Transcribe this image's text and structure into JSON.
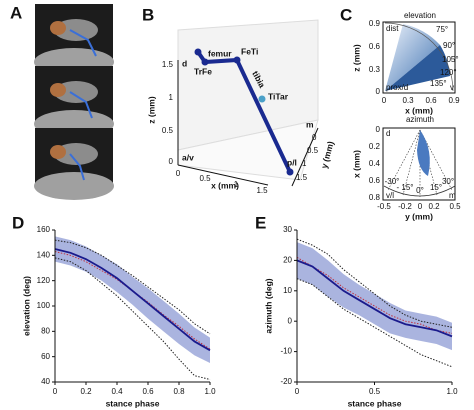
{
  "panels": {
    "a": {
      "letter": "A"
    },
    "b": {
      "letter": "B",
      "joints": [
        "TrFe",
        "femur",
        "FeTi",
        "tibia",
        "TiTar"
      ],
      "directions": [
        "d",
        "a/v",
        "p/l",
        "m"
      ],
      "z_label": "z (mm)",
      "x_label": "x (mm)",
      "y_label": "y (mm)",
      "z_ticks": [
        "1.5",
        "1",
        "0.5",
        "0"
      ],
      "x_ticks": [
        "0",
        "0.5",
        "1",
        "1.5"
      ],
      "y_ticks": [
        "0",
        "0.5",
        "1",
        "1.5"
      ]
    },
    "c": {
      "letter": "C",
      "elevation": {
        "title": "elevation",
        "corners": [
          "dist",
          "prox/d",
          "v"
        ],
        "angles": [
          "75°",
          "90°",
          "105°",
          "120°",
          "135°"
        ],
        "z_label": "z (mm)",
        "x_label": "x (mm)",
        "z_ticks": [
          "0.9",
          "0.6",
          "0.3",
          "0"
        ],
        "x_ticks": [
          "0",
          "0.3",
          "0.6",
          "0.9"
        ]
      },
      "azimuth": {
        "title": "azimuth",
        "corners": [
          "d",
          "v/l",
          "m"
        ],
        "angles": [
          "-30°",
          "- 15°",
          "0°",
          "15°",
          "30°"
        ],
        "x_label": "x (mm)",
        "y_label": "y (mm)",
        "x_ticks": [
          "0",
          "0.2",
          "0.4",
          "0.6",
          "0.8"
        ],
        "y_ticks": [
          "-0.5",
          "-0.2",
          "0",
          "0.2",
          "0.5"
        ]
      }
    }
  },
  "chart_data": [
    {
      "type": "line",
      "letter": "D",
      "xlabel": "stance phase",
      "ylabel": "elevation (deg)",
      "x": [
        0,
        0.1,
        0.2,
        0.3,
        0.4,
        0.5,
        0.6,
        0.7,
        0.8,
        0.9,
        1
      ],
      "xlim": [
        0,
        1
      ],
      "xticks": [
        0,
        0.2,
        0.4,
        0.6,
        0.8,
        {
          "value": 1,
          "label": "1.0"
        }
      ],
      "ylim": [
        40,
        160
      ],
      "yticks": [
        40,
        60,
        80,
        100,
        120,
        140,
        160
      ],
      "series": [
        {
          "color": "#1a1a8c",
          "band_color": "#8e9bd4",
          "values": [
            145,
            142,
            137,
            130,
            122,
            112,
            102,
            92,
            82,
            72,
            65
          ],
          "errors": [
            10,
            10,
            10,
            10,
            11,
            11,
            12,
            12,
            12,
            11,
            10
          ]
        },
        {
          "color": "#c03040",
          "style": "dotted",
          "values": [
            143,
            140,
            135,
            128,
            121,
            112,
            103,
            93,
            84,
            74,
            66
          ]
        },
        {
          "color": "#222222",
          "style": "dotted",
          "values": [
            152,
            150,
            146,
            140,
            132,
            124,
            115,
            106,
            97,
            86,
            78
          ]
        },
        {
          "color": "#222222",
          "style": "dotted",
          "values": [
            138,
            135,
            128,
            118,
            108,
            96,
            84,
            72,
            58,
            45,
            42
          ]
        }
      ]
    },
    {
      "type": "line",
      "letter": "E",
      "xlabel": "stance phase",
      "ylabel": "azimuth (deg)",
      "x": [
        0,
        0.1,
        0.2,
        0.3,
        0.4,
        0.5,
        0.6,
        0.7,
        0.8,
        0.9,
        1
      ],
      "xlim": [
        0,
        1
      ],
      "xticks": [
        0,
        0.5,
        {
          "value": 1,
          "label": "1.0"
        }
      ],
      "ylim": [
        -20,
        30
      ],
      "yticks": [
        -20,
        -10,
        0,
        10,
        20,
        30
      ],
      "series": [
        {
          "color": "#1a1a8c",
          "band_color": "#8e9bd4",
          "values": [
            20,
            18,
            14,
            10,
            7,
            4,
            1,
            -1,
            -2,
            -3,
            -5
          ],
          "errors": [
            6,
            6,
            6,
            5.5,
            5,
            5,
            5,
            4.5,
            4.5,
            4.5,
            4.5
          ]
        },
        {
          "color": "#c03040",
          "style": "dotted",
          "values": [
            21,
            18,
            15,
            11,
            8,
            5,
            2,
            0,
            -1,
            -3,
            -4
          ]
        },
        {
          "color": "#222222",
          "style": "dotted",
          "values": [
            27,
            25,
            22,
            17,
            13,
            9,
            5,
            2,
            0,
            -1,
            -2
          ]
        },
        {
          "color": "#222222",
          "style": "dotted",
          "values": [
            14,
            12,
            8,
            4,
            1,
            -2,
            -5,
            -8,
            -11,
            -13,
            -15
          ]
        }
      ]
    }
  ]
}
